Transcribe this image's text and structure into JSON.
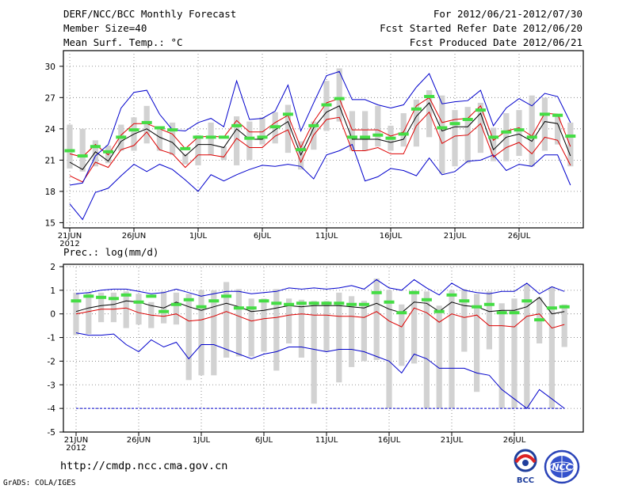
{
  "header": {
    "title": "DERF/NCC/BCC Monthly Forecast",
    "member_size": "Member Size=40",
    "variable": "Mean Surf. Temp.: °C",
    "period": "For 2012/06/21-2012/07/30",
    "start_date": "Fcst Started Refer Date 2012/06/20",
    "produced_date": "Fcst Produced Date 2012/06/21"
  },
  "footer": {
    "url": "http://cmdp.ncc.cma.gov.cn",
    "credit": "GrADS: COLA/IGES",
    "logo_bcc": "BCC",
    "logo_ncc": "NCC"
  },
  "colors": {
    "box": "#d2d2d2",
    "climatology": "#44dd44",
    "ensemble_mean": "#000000",
    "quartile": "#dd0000",
    "extreme": "#0000cc",
    "grid": "#777777"
  },
  "chart_data": [
    {
      "type": "line",
      "title": "Mean Surf. Temp.: °C",
      "xlabel": "",
      "ylabel": "",
      "x_start": 21,
      "x_days": 40,
      "x_tick_positions": [
        0,
        5,
        10,
        15,
        20,
        25,
        30,
        35
      ],
      "x_tick_labels": [
        "21JUN",
        "26JUN",
        "1JUL",
        "6JUL",
        "11JUL",
        "16JUL",
        "21JUL",
        "26JUL"
      ],
      "x_sublabel": "2012",
      "yticks": [
        15,
        18,
        21,
        24,
        27,
        30
      ],
      "ylim": [
        14.5,
        31.5
      ],
      "grid": true,
      "series": [
        {
          "name": "max",
          "values": [
            16.8,
            15.3,
            17.9,
            18.3,
            19.5,
            20.6,
            19.9,
            20.6,
            20.1,
            19.1,
            18.0,
            19.6,
            19.0,
            19.6,
            20.1,
            20.5,
            20.4,
            20.6,
            20.4,
            19.2,
            21.5,
            21.9,
            22.5,
            19.0,
            19.4,
            20.2,
            20.0,
            19.5,
            21.2,
            19.6,
            19.9,
            20.9,
            21.0,
            21.5,
            20.0,
            20.6,
            20.4,
            21.5,
            21.5,
            18.6
          ]
        },
        {
          "name": "q75",
          "values": [
            21.6,
            21.3,
            22.5,
            21.5,
            23.4,
            24.5,
            24.5,
            24.0,
            23.5,
            22.1,
            23.2,
            23.3,
            23.2,
            24.8,
            23.7,
            23.7,
            24.6,
            25.3,
            22.2,
            24.7,
            26.5,
            26.9,
            23.9,
            23.9,
            23.9,
            23.3,
            23.7,
            26.2,
            27.0,
            24.6,
            24.9,
            25.0,
            26.2,
            22.9,
            23.8,
            24.1,
            23.3,
            25.5,
            25.4,
            22.3
          ]
        },
        {
          "name": "mean",
          "values": [
            20.8,
            20.1,
            21.8,
            20.9,
            22.8,
            23.5,
            24.0,
            23.2,
            22.7,
            21.4,
            22.5,
            22.5,
            22.2,
            24.0,
            23.0,
            23.0,
            23.9,
            24.7,
            21.5,
            24.1,
            25.6,
            26.2,
            23.0,
            23.0,
            23.0,
            22.7,
            23.0,
            25.2,
            26.5,
            23.8,
            24.2,
            24.2,
            25.5,
            22.0,
            23.2,
            23.5,
            22.8,
            24.7,
            24.5,
            21.4
          ]
        },
        {
          "name": "q25",
          "values": [
            19.5,
            18.9,
            20.8,
            20.3,
            22.0,
            22.4,
            23.7,
            22.0,
            21.6,
            20.3,
            21.5,
            21.5,
            21.3,
            23.1,
            22.2,
            22.2,
            23.3,
            23.9,
            20.8,
            23.4,
            24.9,
            25.1,
            21.9,
            21.9,
            22.2,
            21.6,
            21.6,
            24.3,
            25.6,
            22.6,
            23.3,
            23.4,
            24.5,
            21.3,
            22.2,
            22.7,
            21.6,
            23.2,
            22.9,
            20.5
          ]
        },
        {
          "name": "min",
          "values": [
            18.6,
            18.8,
            21.4,
            22.5,
            26.0,
            27.5,
            27.7,
            25.4,
            23.9,
            23.8,
            24.6,
            25.0,
            24.2,
            28.6,
            24.9,
            25.0,
            25.7,
            28.2,
            23.8,
            26.5,
            29.1,
            29.5,
            26.8,
            26.8,
            26.3,
            26.0,
            26.3,
            28.0,
            29.3,
            26.4,
            26.6,
            26.7,
            27.7,
            24.3,
            26.0,
            26.9,
            26.2,
            27.4,
            27.1,
            24.6
          ]
        }
      ],
      "boxes": {
        "high": [
          24.4,
          24.0,
          22.9,
          22.4,
          24.4,
          25.1,
          26.2,
          24.2,
          24.6,
          21.6,
          23.4,
          24.6,
          22.3,
          25.2,
          24.7,
          25.1,
          25.6,
          26.3,
          22.8,
          24.7,
          28.6,
          29.8,
          25.7,
          25.7,
          26.2,
          24.3,
          25.5,
          26.8,
          27.7,
          27.2,
          25.8,
          26.1,
          26.5,
          24.1,
          25.5,
          25.8,
          27.2,
          27.0,
          25.4,
          24.6
        ],
        "low": [
          20.2,
          19.9,
          20.4,
          20.7,
          21.9,
          21.9,
          22.6,
          21.9,
          21.5,
          20.6,
          20.5,
          21.5,
          21.0,
          20.5,
          21.0,
          22.5,
          22.6,
          21.7,
          20.1,
          22.0,
          23.8,
          24.7,
          21.9,
          21.9,
          22.3,
          21.9,
          22.3,
          22.3,
          23.2,
          19.7,
          20.4,
          20.7,
          21.7,
          20.9,
          20.9,
          21.4,
          20.4,
          21.9,
          22.5,
          20.4
        ]
      },
      "climatology": [
        21.9,
        21.4,
        22.3,
        21.8,
        23.2,
        23.9,
        24.6,
        24.1,
        23.9,
        22.1,
        23.2,
        23.2,
        23.2,
        24.3,
        23.1,
        23.2,
        24.2,
        25.4,
        22.0,
        24.3,
        26.3,
        26.9,
        23.2,
        23.2,
        23.4,
        23.1,
        23.5,
        25.9,
        27.1,
        24.1,
        24.5,
        24.9,
        25.8,
        23.2,
        23.7,
        23.9,
        23.2,
        25.4,
        25.3,
        23.3
      ]
    },
    {
      "type": "line",
      "title": "Prec.: log(mm/d)",
      "xlabel": "",
      "ylabel": "",
      "x_start": 21,
      "x_days": 40,
      "x_tick_positions": [
        0,
        5,
        10,
        15,
        20,
        25,
        30,
        35
      ],
      "x_tick_labels": [
        "21JUN",
        "26JUN",
        "1JUL",
        "6JUL",
        "11JUL",
        "16JUL",
        "21JUL",
        "26JUL"
      ],
      "x_sublabel": "2012",
      "yticks": [
        2,
        1,
        0,
        -1,
        -2,
        -3,
        -4,
        -5
      ],
      "ylim": [
        -5,
        2.1
      ],
      "grid": true,
      "series": [
        {
          "name": "max",
          "values": [
            0.85,
            0.9,
            1.0,
            1.05,
            1.05,
            0.95,
            0.85,
            0.9,
            1.05,
            0.9,
            0.75,
            0.85,
            0.95,
            0.95,
            0.85,
            0.9,
            0.95,
            1.1,
            1.05,
            1.1,
            1.05,
            1.1,
            1.2,
            1.05,
            1.45,
            1.1,
            1.0,
            1.45,
            1.1,
            0.8,
            1.3,
            1.0,
            0.9,
            0.85,
            0.95,
            0.95,
            1.3,
            0.85,
            1.15,
            0.95
          ]
        },
        {
          "name": "mean",
          "values": [
            0.1,
            0.25,
            0.35,
            0.4,
            0.55,
            0.5,
            0.35,
            0.25,
            0.5,
            0.3,
            0.15,
            0.3,
            0.45,
            0.3,
            0.1,
            0.15,
            0.25,
            0.35,
            0.3,
            0.35,
            0.35,
            0.35,
            0.3,
            0.25,
            0.45,
            0.2,
            0.05,
            0.5,
            0.45,
            0.1,
            0.5,
            0.35,
            0.3,
            0.1,
            0.15,
            0.15,
            0.3,
            0.7,
            0.0,
            0.1
          ]
        },
        {
          "name": "q25",
          "values": [
            0.0,
            0.1,
            0.2,
            0.2,
            0.25,
            0.05,
            -0.05,
            -0.1,
            0.0,
            -0.3,
            -0.25,
            -0.1,
            0.1,
            -0.1,
            -0.3,
            -0.2,
            -0.15,
            -0.05,
            0.0,
            -0.05,
            -0.05,
            -0.1,
            -0.1,
            -0.15,
            0.1,
            -0.3,
            -0.55,
            0.25,
            0.05,
            -0.35,
            0.0,
            -0.15,
            -0.05,
            -0.5,
            -0.5,
            -0.55,
            -0.1,
            0.0,
            -0.6,
            -0.45
          ]
        },
        {
          "name": "min",
          "values": [
            -0.8,
            -0.9,
            -0.9,
            -0.85,
            -1.3,
            -1.6,
            -1.1,
            -1.4,
            -1.2,
            -1.9,
            -1.3,
            -1.3,
            -1.5,
            -1.7,
            -1.9,
            -1.7,
            -1.6,
            -1.4,
            -1.4,
            -1.5,
            -1.6,
            -1.5,
            -1.5,
            -1.6,
            -1.8,
            -2.0,
            -2.5,
            -1.7,
            -1.9,
            -2.3,
            -2.3,
            -2.3,
            -2.5,
            -2.6,
            -3.2,
            -3.6,
            -4.0,
            -3.2,
            -3.6,
            -4.0
          ]
        },
        {
          "name": "floor",
          "values": [
            -4,
            -4,
            -4,
            -4,
            -4,
            -4,
            -4,
            -4,
            -4,
            -4,
            -4,
            -4,
            -4,
            -4,
            -4,
            -4,
            -4,
            -4,
            -4,
            -4,
            -4,
            -4,
            -4,
            -4,
            -4,
            -4,
            -4,
            -4,
            -4,
            -4,
            -4,
            -4,
            -4,
            -4,
            -4,
            -4,
            -4,
            -4,
            -4,
            -4
          ]
        }
      ],
      "boxes": {
        "high": [
          0.9,
          0.9,
          0.9,
          0.9,
          0.95,
          0.85,
          0.5,
          0.95,
          0.9,
          0.85,
          1.0,
          1.0,
          1.35,
          1.05,
          0.65,
          0.65,
          1.05,
          0.65,
          0.6,
          0.55,
          0.55,
          0.9,
          0.75,
          0.55,
          1.5,
          1.0,
          0.4,
          1.0,
          0.95,
          0.35,
          1.0,
          1.05,
          0.85,
          0.95,
          0.45,
          0.65,
          1.25,
          0.7,
          1.15,
          0.4
        ],
        "low": [
          -0.9,
          -0.85,
          -0.35,
          -0.35,
          -0.6,
          -0.45,
          -0.6,
          -0.4,
          -0.45,
          -2.8,
          -2.6,
          -2.6,
          -1.85,
          -1.8,
          -1.8,
          -1.6,
          -2.4,
          -1.25,
          -1.85,
          -3.8,
          -1.6,
          -2.9,
          -2.25,
          -2.0,
          -1.95,
          -4.0,
          -2.2,
          -2.1,
          -4.0,
          -4.0,
          -4.0,
          -1.6,
          -3.3,
          -1.5,
          -4.0,
          -4.0,
          -4.0,
          -1.25,
          -4.0,
          -1.4
        ]
      },
      "climatology": [
        0.55,
        0.75,
        0.7,
        0.65,
        0.8,
        0.5,
        0.75,
        0.1,
        0.4,
        0.6,
        0.3,
        0.55,
        0.75,
        0.25,
        0.25,
        0.55,
        0.45,
        0.4,
        0.45,
        0.45,
        0.45,
        0.45,
        0.4,
        0.4,
        0.9,
        0.5,
        0.05,
        0.9,
        0.6,
        0.1,
        0.8,
        0.55,
        0.3,
        0.4,
        0.05,
        0.05,
        0.55,
        -0.25,
        0.25,
        0.3
      ]
    }
  ]
}
